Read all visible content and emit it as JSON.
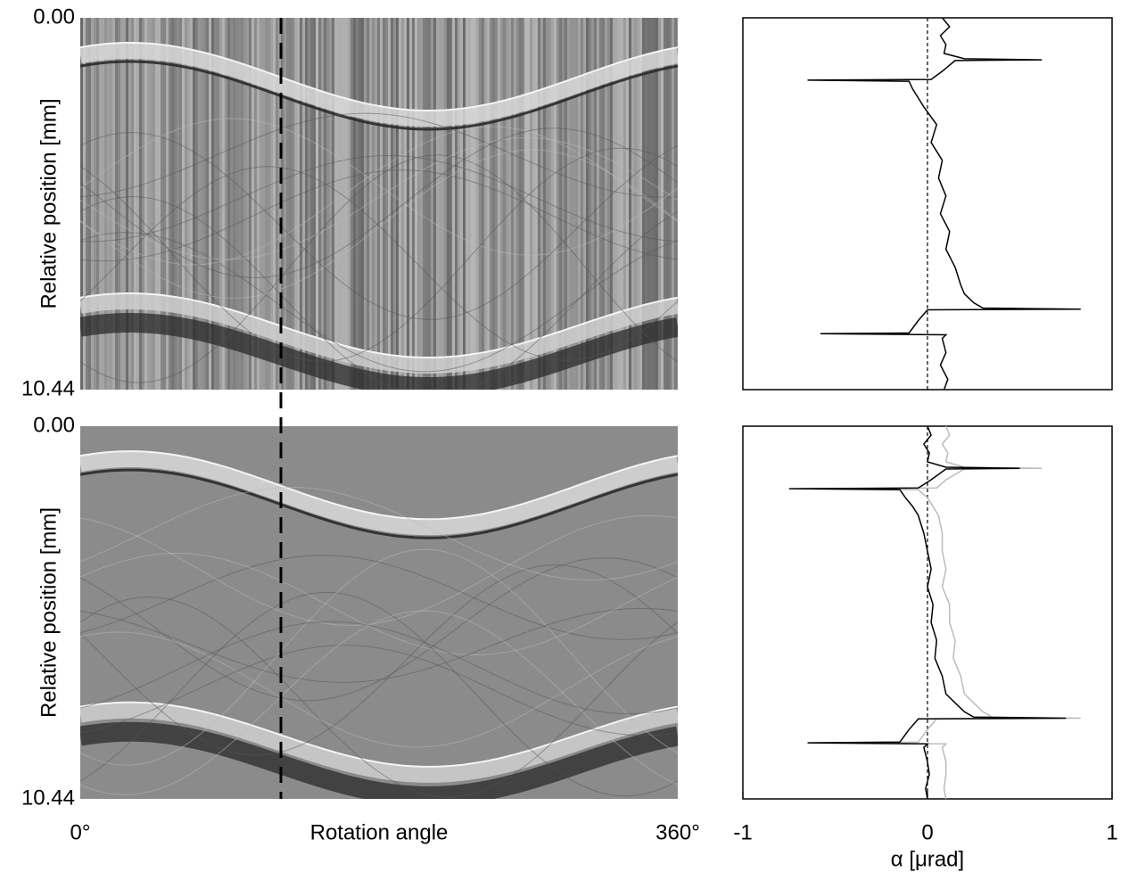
{
  "chart_data": [
    {
      "type": "image",
      "ylabel": "Relative position [mm]",
      "ylim": [
        0,
        10.44
      ],
      "yticks": [
        {
          "value": 0,
          "label": "0.00"
        },
        {
          "value": 10.44,
          "label": "10.44"
        }
      ],
      "stripes": true
    },
    {
      "type": "line",
      "xlim": [
        -1,
        1
      ],
      "ylim": [
        0,
        10.44
      ],
      "y": [
        0,
        0.25,
        0.5,
        0.75,
        1.0,
        1.15,
        1.18,
        1.2,
        1.5,
        1.73,
        1.75,
        1.78,
        2.0,
        2.25,
        2.5,
        3.0,
        3.5,
        4.0,
        4.5,
        5.0,
        5.5,
        6.0,
        6.5,
        7.0,
        7.5,
        7.75,
        8.0,
        8.15,
        8.18,
        8.2,
        8.5,
        8.85,
        8.87,
        8.9,
        9.0,
        9.4,
        9.75,
        10.15,
        10.44
      ],
      "series": [
        {
          "color": "#000000",
          "values": [
            0.08,
            0.12,
            0.07,
            0.1,
            0.09,
            0.2,
            0.62,
            0.15,
            0.08,
            0.02,
            -0.65,
            -0.1,
            -0.08,
            -0.05,
            -0.02,
            0.05,
            0.02,
            0.08,
            0.06,
            0.1,
            0.07,
            0.12,
            0.1,
            0.15,
            0.18,
            0.2,
            0.25,
            0.3,
            0.83,
            0.0,
            -0.05,
            -0.1,
            -0.58,
            0.1,
            0.08,
            0.1,
            0.07,
            0.11,
            0.09
          ]
        }
      ]
    },
    {
      "type": "image",
      "ylabel": "Relative position [mm]",
      "ylim": [
        0,
        10.44
      ],
      "yticks": [
        {
          "value": 0,
          "label": "0.00"
        },
        {
          "value": 10.44,
          "label": "10.44"
        }
      ],
      "xlim": [
        0,
        360
      ],
      "xticks": [
        {
          "value": 0,
          "label": "0°"
        },
        {
          "value": 360,
          "label": "360°"
        }
      ],
      "xlabel": "Rotation angle",
      "stripes": false
    },
    {
      "type": "line",
      "xlim": [
        -1,
        1
      ],
      "ylim": [
        0,
        10.44
      ],
      "xticks": [
        -1,
        0,
        1
      ],
      "xlabel": "α  [μrad]",
      "y": [
        0,
        0.25,
        0.5,
        0.75,
        1.0,
        1.15,
        1.18,
        1.2,
        1.5,
        1.73,
        1.75,
        1.78,
        2.0,
        2.25,
        2.5,
        3.0,
        3.5,
        4.0,
        4.5,
        5.0,
        5.5,
        6.0,
        6.5,
        7.0,
        7.5,
        7.75,
        8.0,
        8.15,
        8.18,
        8.2,
        8.5,
        8.85,
        8.87,
        8.9,
        9.0,
        9.4,
        9.75,
        10.15,
        10.44
      ],
      "series": [
        {
          "color": "#bbbbbb",
          "values": [
            0.1,
            0.12,
            0.08,
            0.11,
            0.1,
            0.2,
            0.62,
            0.2,
            0.1,
            0.05,
            -0.6,
            -0.05,
            0.0,
            0.03,
            0.06,
            0.08,
            0.08,
            0.1,
            0.08,
            0.12,
            0.12,
            0.15,
            0.14,
            0.18,
            0.2,
            0.25,
            0.3,
            0.35,
            0.83,
            0.05,
            0.0,
            -0.05,
            -0.5,
            0.1,
            0.08,
            0.1,
            0.1,
            0.09,
            0.1
          ]
        },
        {
          "color": "#000000",
          "values": [
            0.0,
            0.02,
            -0.02,
            0.01,
            0.0,
            0.1,
            0.5,
            0.1,
            0.02,
            -0.05,
            -0.75,
            -0.15,
            -0.12,
            -0.08,
            -0.05,
            -0.02,
            0.0,
            0.02,
            0.0,
            0.03,
            0.02,
            0.05,
            0.04,
            0.08,
            0.1,
            0.15,
            0.2,
            0.25,
            0.75,
            -0.05,
            -0.1,
            -0.15,
            -0.65,
            0.0,
            -0.02,
            0.0,
            0.01,
            -0.01,
            0.0
          ]
        }
      ]
    }
  ]
}
